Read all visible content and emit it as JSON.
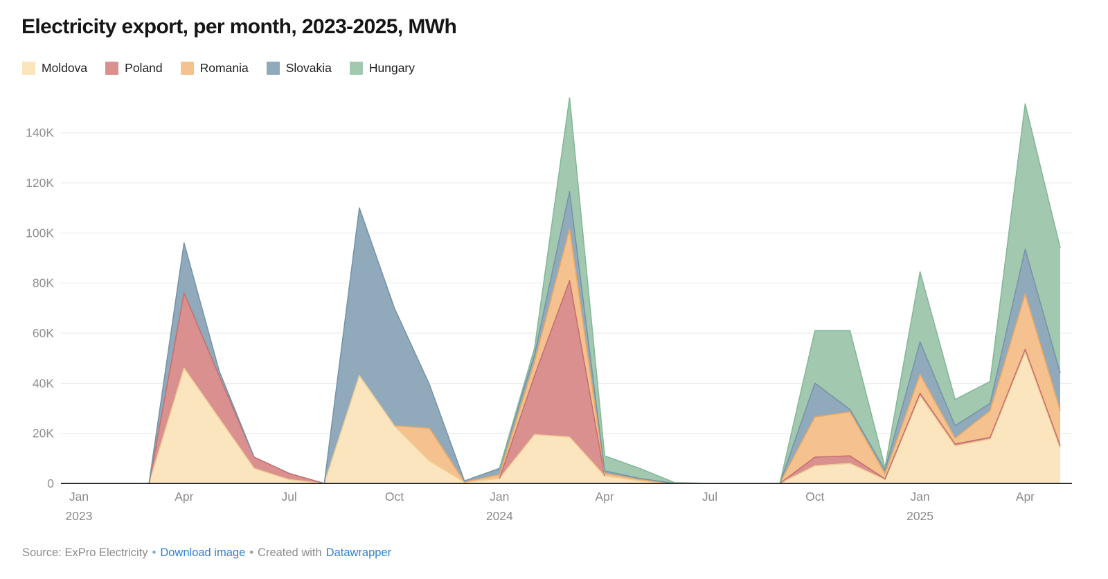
{
  "title": "Electricity export, per month, 2023-2025, MWh",
  "legend": {
    "items": [
      {
        "id": "moldova",
        "label": "Moldova"
      },
      {
        "id": "poland",
        "label": "Poland"
      },
      {
        "id": "romania",
        "label": "Romania"
      },
      {
        "id": "slovakia",
        "label": "Slovakia"
      },
      {
        "id": "hungary",
        "label": "Hungary"
      }
    ]
  },
  "footer": {
    "source": "Source: ExPro Electricity",
    "sep1": "•",
    "download_link": "Download image",
    "sep2": "•",
    "created_prefix": "Created with",
    "created_link": "Datawrapper"
  },
  "chart_data": {
    "type": "area",
    "stacked": true,
    "title": "Electricity export, per month, 2023-2025, MWh",
    "unit": "MWh",
    "xlabel": "",
    "ylabel": "MWh",
    "ylim": [
      0,
      160000
    ],
    "grid": true,
    "legend_position": "top",
    "x": [
      "Jan 2023",
      "Feb 2023",
      "Mar 2023",
      "Apr 2023",
      "May 2023",
      "Jun 2023",
      "Jul 2023",
      "Aug 2023",
      "Sep 2023",
      "Oct 2023",
      "Nov 2023",
      "Dec 2023",
      "Jan 2024",
      "Feb 2024",
      "Mar 2024",
      "Apr 2024",
      "May 2024",
      "Jun 2024",
      "Jul 2024",
      "Aug 2024",
      "Sep 2024",
      "Oct 2024",
      "Nov 2024",
      "Dec 2024",
      "Jan 2025",
      "Feb 2025",
      "Mar 2025",
      "Apr 2025",
      "May 2025"
    ],
    "series": [
      {
        "name": "Moldova",
        "color": "#FAE5BE",
        "stroke": "#EFCE96",
        "values": [
          0,
          0,
          0,
          46000,
          26000,
          6000,
          1500,
          0,
          43000,
          23000,
          9000,
          500,
          2000,
          19500,
          18500,
          3000,
          1000,
          0,
          0,
          0,
          0,
          7000,
          8000,
          1500,
          35000,
          15000,
          17700,
          52500,
          14000
        ]
      },
      {
        "name": "Poland",
        "color": "#D9908E",
        "stroke": "#C4706F",
        "values": [
          0,
          0,
          0,
          30000,
          17000,
          4500,
          2500,
          0,
          0,
          0,
          0,
          0,
          0,
          23500,
          62500,
          0,
          0,
          0,
          0,
          0,
          0,
          3500,
          3000,
          300,
          1000,
          700,
          700,
          1000,
          1000
        ]
      },
      {
        "name": "Romania",
        "color": "#F5C28F",
        "stroke": "#ECA963",
        "values": [
          0,
          0,
          0,
          0,
          0,
          0,
          0,
          0,
          0,
          0,
          13000,
          0,
          1500,
          5500,
          20500,
          1000,
          500,
          0,
          0,
          0,
          0,
          16000,
          17500,
          2000,
          7500,
          2300,
          10600,
          22000,
          14000
        ]
      },
      {
        "name": "Slovakia",
        "color": "#91AABB",
        "stroke": "#7694A8",
        "values": [
          0,
          0,
          0,
          20000,
          2000,
          0,
          0,
          0,
          67000,
          47000,
          17500,
          500,
          2500,
          3000,
          15000,
          1000,
          500,
          0,
          0,
          0,
          0,
          13500,
          1000,
          1500,
          13000,
          5000,
          3000,
          18000,
          15000
        ]
      },
      {
        "name": "Hungary",
        "color": "#A2C9B0",
        "stroke": "#84B897",
        "values": [
          0,
          0,
          0,
          0,
          0,
          0,
          0,
          0,
          0,
          0,
          0,
          0,
          0,
          2500,
          37500,
          6000,
          4000,
          300,
          0,
          0,
          0,
          21000,
          31500,
          1000,
          28000,
          10500,
          8700,
          58000,
          50000
        ]
      }
    ],
    "yticks": [
      {
        "v": 0,
        "label": "0"
      },
      {
        "v": 20000,
        "label": "20K"
      },
      {
        "v": 40000,
        "label": "40K"
      },
      {
        "v": 60000,
        "label": "60K"
      },
      {
        "v": 80000,
        "label": "80K"
      },
      {
        "v": 100000,
        "label": "100K"
      },
      {
        "v": 120000,
        "label": "120K"
      },
      {
        "v": 140000,
        "label": "140K"
      }
    ],
    "xticks": [
      {
        "i": 0,
        "label": "Jan",
        "year": "2023"
      },
      {
        "i": 3,
        "label": "Apr"
      },
      {
        "i": 6,
        "label": "Jul"
      },
      {
        "i": 9,
        "label": "Oct"
      },
      {
        "i": 12,
        "label": "Jan",
        "year": "2024"
      },
      {
        "i": 15,
        "label": "Apr"
      },
      {
        "i": 18,
        "label": "Jul"
      },
      {
        "i": 21,
        "label": "Oct"
      },
      {
        "i": 24,
        "label": "Jan",
        "year": "2025"
      },
      {
        "i": 27,
        "label": "Apr"
      }
    ]
  }
}
